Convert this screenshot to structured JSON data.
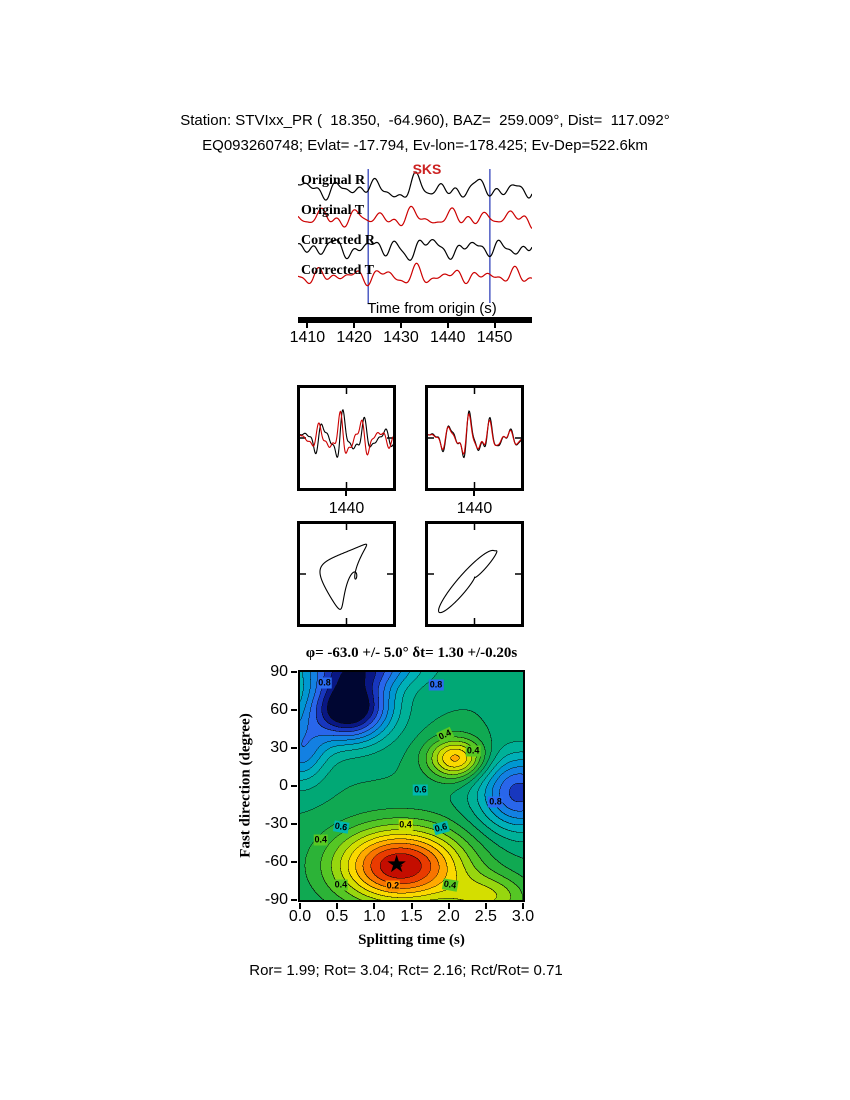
{
  "header": {
    "line1": "Station: STVIxx_PR (  18.350,  -64.960), BAZ=  259.009°, Dist=  117.092°",
    "line2": "EQ093260748; Evlat= -17.794, Ev-lon=-178.425; Ev-Dep=522.6km"
  },
  "waveform_panel": {
    "phase_label": "SKS",
    "trace_labels": [
      "Original R",
      "Original T",
      "Corrected R",
      "Corrected T"
    ],
    "xlabel": "Time from origin (s)",
    "xticks": [
      "1410",
      "1420",
      "1430",
      "1440",
      "1450"
    ]
  },
  "comparison_panels": {
    "left_tick": "1440",
    "right_tick": "1440"
  },
  "contour_panel": {
    "title": "φ= -63.0 +/- 5.0° δt= 1.30 +/-0.20s",
    "ylabel": "Fast direction (degree)",
    "xlabel": "Splitting time (s)",
    "yticks": [
      "90",
      "60",
      "30",
      "0",
      "-30",
      "-60",
      "-90"
    ],
    "xticks": [
      "0.0",
      "0.5",
      "1.0",
      "1.5",
      "2.0",
      "2.5",
      "3.0"
    ]
  },
  "footer": {
    "text": "Ror= 1.99; Rot= 3.04; Rct= 2.16; Rct/Rot= 0.71"
  },
  "quality": {
    "Ror": 1.99,
    "Rot": 3.04,
    "Rct": 2.16,
    "Rct_over_Rot": 0.71
  },
  "icons": {
    "star": "★"
  },
  "chart_data": [
    {
      "type": "line",
      "title": "SKS splitting seismograms (radial and transverse, original and corrected)",
      "xlabel": "Time from origin (s)",
      "x_range": [
        1408,
        1458
      ],
      "xticks": [
        1410,
        1420,
        1430,
        1440,
        1450
      ],
      "phase_marker": {
        "label": "SKS",
        "time": 1432
      },
      "window_lines": [
        1423,
        1449
      ],
      "window_color": "#3344bb",
      "traces": [
        {
          "label": "Original R",
          "color": "#000000",
          "center": 26,
          "components": [
            [
              5,
              7.4,
              0.4
            ],
            [
              3.5,
              4.3,
              2.2
            ],
            [
              2.5,
              2.9,
              4.1
            ],
            [
              2,
              12.5,
              1.0
            ]
          ],
          "pulse": [
            11,
            1432,
            5,
            7.5
          ]
        },
        {
          "label": "Original T",
          "color": "#cc0000",
          "center": 55,
          "components": [
            [
              4.5,
              6.8,
              2.7
            ],
            [
              3,
              4.0,
              0.8
            ],
            [
              2.5,
              3.1,
              3.4
            ],
            [
              2,
              10,
              5.2
            ]
          ],
          "pulse": [
            7,
            1430,
            6,
            6.5
          ]
        },
        {
          "label": "Corrected R",
          "color": "#000000",
          "center": 85,
          "components": [
            [
              5,
              7.2,
              1.1
            ],
            [
              3.5,
              4.4,
              2.9
            ],
            [
              2.5,
              2.8,
              0.3
            ],
            [
              2,
              11,
              4.4
            ]
          ],
          "pulse": [
            10,
            1433,
            5,
            7.5
          ]
        },
        {
          "label": "Corrected T",
          "color": "#cc0000",
          "center": 113,
          "components": [
            [
              4.5,
              7.0,
              3.6
            ],
            [
              3,
              4.2,
              1.5
            ],
            [
              2.5,
              3.0,
              5.0
            ],
            [
              1.5,
              9,
              2.2
            ]
          ],
          "pulse": [
            4,
            1437,
            6,
            6.0
          ]
        }
      ]
    },
    {
      "type": "line",
      "title": "Fast/slow component overlay (top) and particle motion hodograms (bottom); left = uncorrected, right = corrected",
      "t_range": [
        1425,
        1455
      ],
      "xticks": [
        1440
      ],
      "panels": {
        "left": {
          "traces": [
            {
              "color": "#000000",
              "components": [
                [
                  16,
                  6.4,
                  0.2
                ],
                [
                  9,
                  3.5,
                  1.9
                ],
                [
                  5,
                  2.4,
                  3.6
                ]
              ],
              "env": [
                1439,
                9,
                0.3
              ]
            },
            {
              "color": "#cc0000",
              "components": [
                [
                  15,
                  6.4,
                  1.6
                ],
                [
                  8,
                  3.5,
                  3.3
                ],
                [
                  5,
                  2.4,
                  5.0
                ]
              ],
              "env": [
                1440,
                9,
                0.3
              ]
            }
          ]
        },
        "right": {
          "traces": [
            {
              "color": "#000000",
              "components": [
                [
                  16,
                  6.2,
                  0.3
                ],
                [
                  9,
                  3.4,
                  2.0
                ],
                [
                  5,
                  2.3,
                  3.8
                ]
              ],
              "env": [
                1439,
                8,
                0.3
              ]
            },
            {
              "color": "#cc0000",
              "components": [
                [
                  14,
                  6.2,
                  0.45
                ],
                [
                  8,
                  3.4,
                  2.15
                ],
                [
                  4,
                  2.3,
                  3.95
                ]
              ],
              "env": [
                1439,
                8,
                0.3
              ]
            }
          ]
        }
      },
      "particle_motion": {
        "left": {
          "x": [
            [
              14,
              1,
              0
            ],
            [
              8,
              2,
              1.1
            ],
            [
              5,
              3,
              2.3
            ]
          ],
          "y": [
            [
              26,
              1,
              1.25
            ],
            [
              11,
              2,
              2.6
            ],
            [
              6,
              3,
              0.6
            ]
          ],
          "rot": -15
        },
        "right": {
          "x": [
            [
              24,
              1,
              0
            ],
            [
              9,
              2,
              0.5
            ],
            [
              5,
              3,
              2.1
            ]
          ],
          "y": [
            [
              26,
              1,
              0.3
            ],
            [
              10,
              2,
              0.9
            ],
            [
              6,
              3,
              2.5
            ]
          ],
          "rot": 0
        }
      }
    },
    {
      "type": "heatmap",
      "title": "φ= -63.0 +/- 5.0° δt= 1.30 +/-0.20s",
      "xlabel": "Splitting time (s)",
      "ylabel": "Fast direction (degree)",
      "xlim": [
        0,
        3
      ],
      "ylim": [
        -90,
        90
      ],
      "xticks": [
        0.0,
        0.5,
        1.0,
        1.5,
        2.0,
        2.5,
        3.0
      ],
      "yticks": [
        90,
        60,
        30,
        0,
        -30,
        -60,
        -90
      ],
      "best_solution": {
        "fast_direction_deg": -63.0,
        "fast_direction_err_deg": 5.0,
        "delay_time_s": 1.3,
        "delay_time_err_s": 0.2,
        "star_xy": [
          1.3,
          -63
        ]
      },
      "contour_interval": 0.05,
      "surface": {
        "base": 0.55,
        "band_step": 0.05,
        "blobs": [
          {
            "a": -0.5,
            "x": 1.35,
            "y": -63,
            "sx": 0.85,
            "sy": 30
          },
          {
            "a": -0.32,
            "x": 2.1,
            "y": 22,
            "sx": 0.38,
            "sy": 16
          },
          {
            "a": 0.5,
            "x": 0.65,
            "y": 62,
            "sx": 0.55,
            "sy": 26
          },
          {
            "a": 0.32,
            "x": 2.95,
            "y": -5,
            "sx": 0.55,
            "sy": 30
          },
          {
            "a": 0.3,
            "x": 0.8,
            "y": 96,
            "sx": 0.8,
            "sy": 18
          },
          {
            "a": -0.18,
            "x": 2.55,
            "y": -88,
            "sx": 0.55,
            "sy": 18
          },
          {
            "a": 0.22,
            "x": 0.0,
            "y": 28,
            "sx": 0.35,
            "sy": 26
          }
        ]
      },
      "colormap": [
        [
          0.0,
          "#700000"
        ],
        [
          0.06,
          "#b80000"
        ],
        [
          0.12,
          "#e83500"
        ],
        [
          0.2,
          "#ff9000"
        ],
        [
          0.27,
          "#ffd800"
        ],
        [
          0.34,
          "#c8e000"
        ],
        [
          0.42,
          "#59c823"
        ],
        [
          0.5,
          "#18aa40"
        ],
        [
          0.58,
          "#00a878"
        ],
        [
          0.66,
          "#00b8b0"
        ],
        [
          0.74,
          "#0090d8"
        ],
        [
          0.82,
          "#2b6bf0"
        ],
        [
          0.9,
          "#1020a8"
        ],
        [
          0.96,
          "#000a50"
        ],
        [
          1.0,
          "#000000"
        ]
      ],
      "contour_annotations": [
        {
          "text": "0.8",
          "x": 0.33,
          "y": 81,
          "bg": "#2b6bf0",
          "r": 0
        },
        {
          "text": "0.8",
          "x": 1.83,
          "y": 80,
          "bg": "#2b6bf0",
          "r": 0
        },
        {
          "text": "0.4",
          "x": 1.95,
          "y": 40,
          "bg": "#59c823",
          "r": -25
        },
        {
          "text": "0.4",
          "x": 2.33,
          "y": 28,
          "bg": "#59c823",
          "r": 0
        },
        {
          "text": "0.6",
          "x": 1.62,
          "y": -3,
          "bg": "#00b8b0",
          "r": 0
        },
        {
          "text": "0.8",
          "x": 2.63,
          "y": -13,
          "bg": "#2b6bf0",
          "r": 0
        },
        {
          "text": "0.6",
          "x": 0.55,
          "y": -32,
          "bg": "#00b8b0",
          "r": 10
        },
        {
          "text": "0.4",
          "x": 0.28,
          "y": -43,
          "bg": "#59c823",
          "r": 0
        },
        {
          "text": "0.4",
          "x": 1.42,
          "y": -31,
          "bg": "#c8e000",
          "r": 0
        },
        {
          "text": "0.6",
          "x": 1.9,
          "y": -33,
          "bg": "#00b8b0",
          "r": -15
        },
        {
          "text": "0.2",
          "x": 1.25,
          "y": -79,
          "bg": "#ff9000",
          "r": 0
        },
        {
          "text": "0.4",
          "x": 0.55,
          "y": -78,
          "bg": "#59c823",
          "r": 0
        },
        {
          "text": "0.4",
          "x": 2.02,
          "y": -78,
          "bg": "#59c823",
          "r": 10
        }
      ]
    }
  ]
}
